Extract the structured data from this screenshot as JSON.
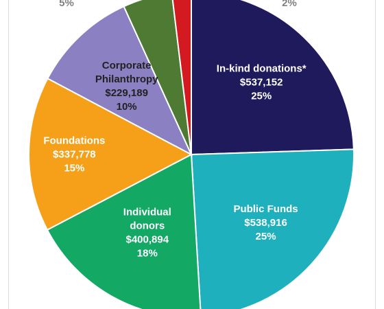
{
  "chart_data": {
    "type": "pie",
    "title": "",
    "start_angle_deg": 0,
    "direction": "clockwise",
    "slices": [
      {
        "label_lines": [
          "In-kind donations*"
        ],
        "amount": "$537,152",
        "percent": "25%",
        "value": 537152,
        "color": "#1f1a5c",
        "text_color": "#ffffff"
      },
      {
        "label_lines": [
          "Public Funds"
        ],
        "amount": "$538,916",
        "percent": "25%",
        "value": 538916,
        "color": "#1fb0bd",
        "text_color": "#ffffff"
      },
      {
        "label_lines": [
          "Individual",
          "donors"
        ],
        "amount": "$400,894",
        "percent": "18%",
        "value": 400894,
        "color": "#13a864",
        "text_color": "#ffffff"
      },
      {
        "label_lines": [
          "Foundations"
        ],
        "amount": "$337,778",
        "percent": "15%",
        "value": 337778,
        "color": "#f6a01a",
        "text_color": "#ffffff"
      },
      {
        "label_lines": [
          "Corporate",
          "Philanthropy"
        ],
        "amount": "$229,189",
        "percent": "10%",
        "value": 229189,
        "color": "#8a80c2",
        "text_color": "#222222"
      },
      {
        "label_lines": [],
        "amount": "",
        "percent": "5%",
        "value": 107500,
        "color": "#4e7a34",
        "text_color": "#7f7f7f"
      },
      {
        "label_lines": [],
        "amount": "",
        "percent": "2%",
        "value": 42000,
        "color": "#d21a20",
        "text_color": "#7f7f7f"
      }
    ]
  }
}
